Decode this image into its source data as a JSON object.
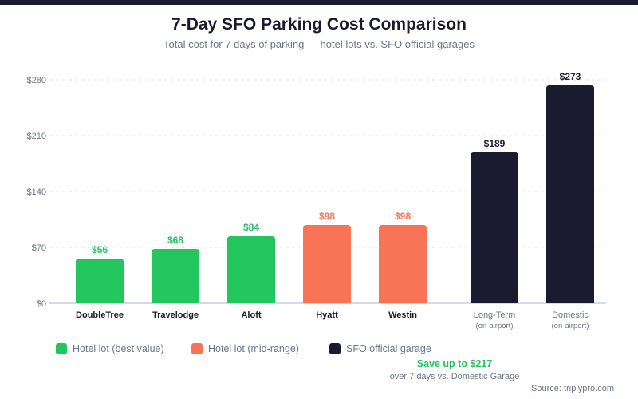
{
  "title": "7-Day SFO Parking Cost Comparison",
  "subtitle": "Total cost for 7 days of parking — hotel lots vs. SFO official garages",
  "chart_data": {
    "type": "bar",
    "categories": [
      "DoubleTree",
      "Travelodge",
      "Aloft",
      "Hyatt",
      "Westin",
      "Long-Term",
      "Domestic"
    ],
    "category_sublabels": [
      "",
      "",
      "",
      "",
      "",
      "(on-airport)",
      "(on-airport)"
    ],
    "values": [
      56,
      68,
      84,
      98,
      98,
      189,
      273
    ],
    "data_labels": [
      "$56",
      "$68",
      "$84",
      "$98",
      "$98",
      "$189",
      "$273"
    ],
    "groups": [
      "best",
      "best",
      "best",
      "mid",
      "mid",
      "sfo",
      "sfo"
    ],
    "yticks": [
      0,
      70,
      140,
      210,
      280
    ],
    "ytick_labels": [
      "$0",
      "$70",
      "$140",
      "$210",
      "$280"
    ],
    "ylim": [
      0,
      280
    ],
    "grid": true,
    "legend_placement": "bottom-left",
    "colors": {
      "best": "#22c55e",
      "mid": "#f97457",
      "sfo": "#1b1b2f"
    }
  },
  "legend": [
    {
      "label": "Hotel lot (best value)",
      "color": "#22c55e"
    },
    {
      "label": "Hotel lot (mid-range)",
      "color": "#f97457"
    },
    {
      "label": "SFO official garage",
      "color": "#1b1b2f"
    }
  ],
  "callout": {
    "headline": "Save up to $217",
    "detail": "over 7 days vs. Domestic Garage"
  },
  "source": "Source: triplypro.com"
}
